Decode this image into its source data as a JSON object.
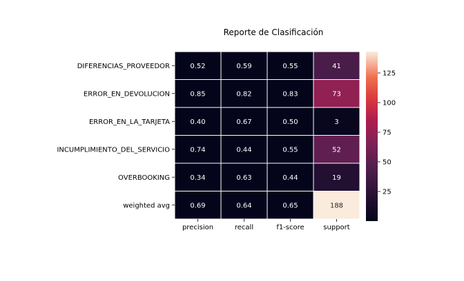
{
  "chart_data": {
    "type": "heatmap",
    "title": "Reporte de Clasificación",
    "xlabel": "",
    "ylabel": "",
    "columns": [
      "precision",
      "recall",
      "f1-score",
      "support"
    ],
    "rows": [
      "DIFERENCIAS_PROVEEDOR",
      "ERROR_EN_DEVOLUCION",
      "ERROR_EN_LA_TARJETA",
      "INCUMPLIMIENTO_DEL_SERVICIO",
      "OVERBOOKING",
      "weighted avg"
    ],
    "values": [
      [
        0.52,
        0.59,
        0.55,
        41
      ],
      [
        0.85,
        0.82,
        0.83,
        73
      ],
      [
        0.4,
        0.67,
        0.5,
        3
      ],
      [
        0.74,
        0.44,
        0.55,
        52
      ],
      [
        0.34,
        0.63,
        0.44,
        19
      ],
      [
        0.69,
        0.64,
        0.65,
        188
      ]
    ],
    "labels": [
      [
        "0.52",
        "0.59",
        "0.55",
        "41"
      ],
      [
        "0.85",
        "0.82",
        "0.83",
        "73"
      ],
      [
        "0.40",
        "0.67",
        "0.50",
        "3"
      ],
      [
        "0.74",
        "0.44",
        "0.55",
        "52"
      ],
      [
        "0.34",
        "0.63",
        "0.44",
        "19"
      ],
      [
        "0.69",
        "0.64",
        "0.65",
        "188"
      ]
    ],
    "colorbar": {
      "colormap": "rocket",
      "range": [
        0,
        143
      ],
      "ticks": [
        25,
        50,
        75,
        100,
        125
      ]
    }
  }
}
